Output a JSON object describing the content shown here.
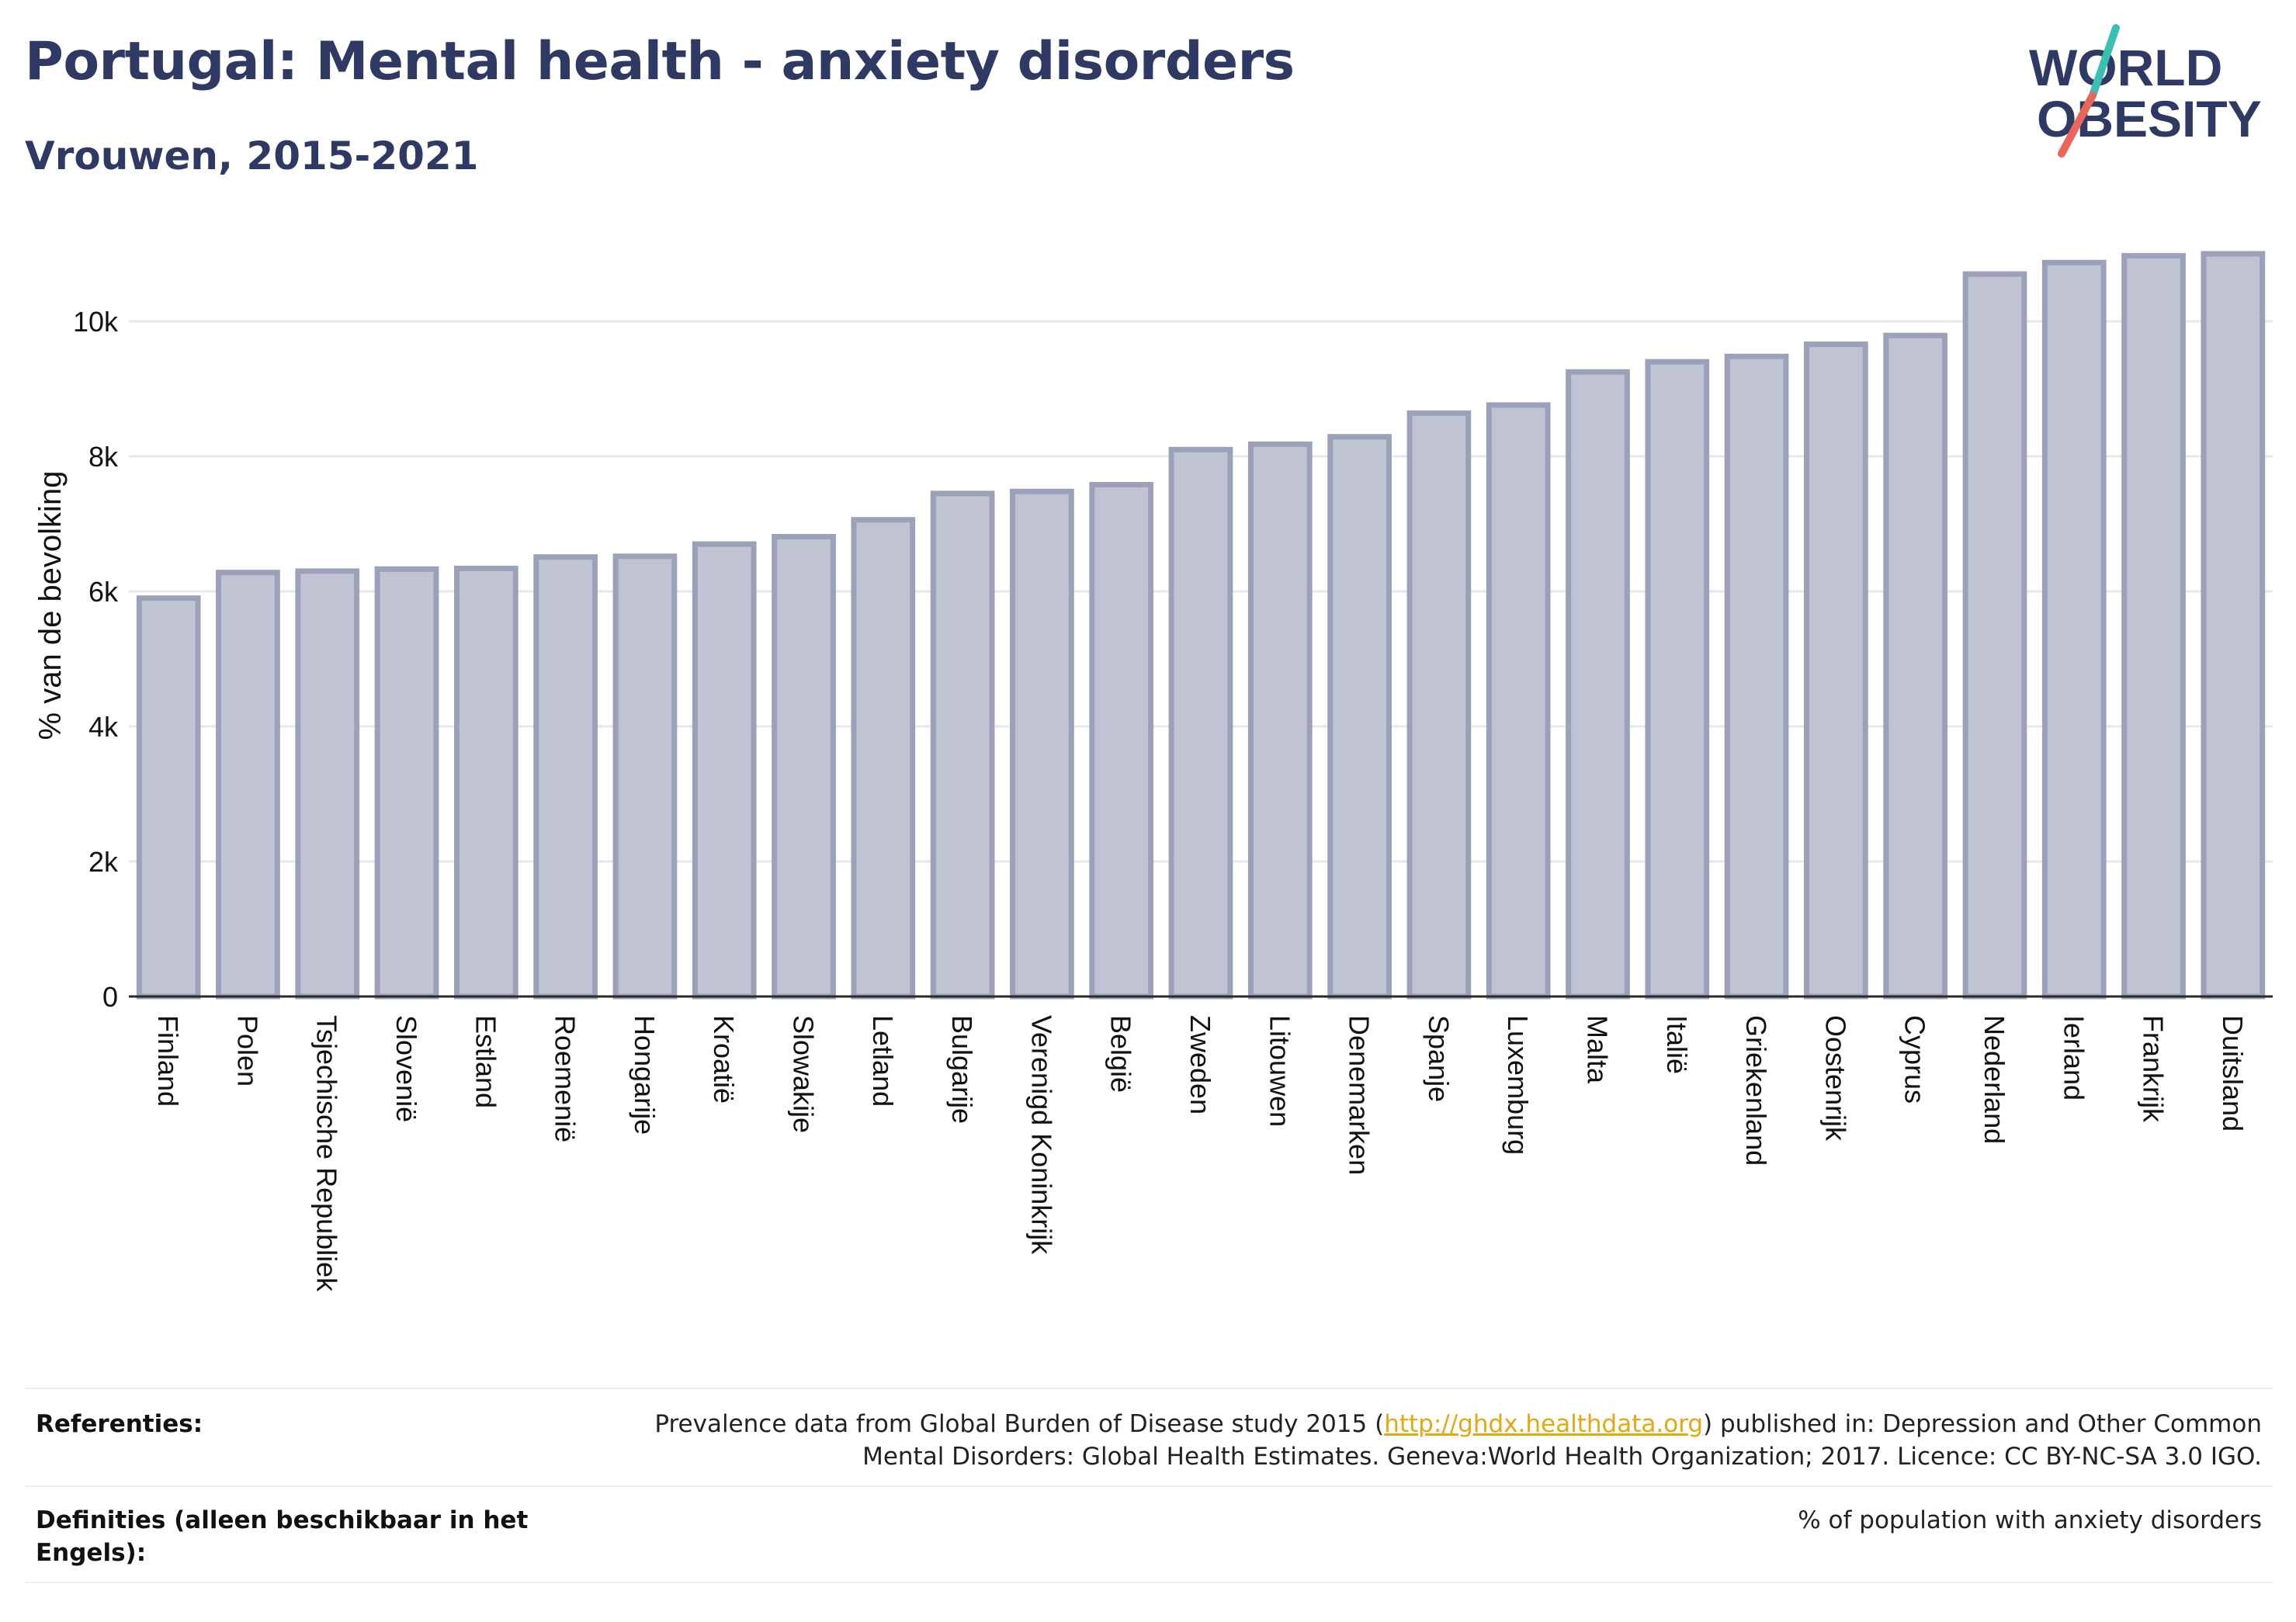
{
  "header": {
    "title": "Portugal: Mental health - anxiety disorders",
    "subtitle": "Vrouwen, 2015-2021"
  },
  "logo": {
    "line1": "WORLD",
    "line2": "OBESITY",
    "colors": {
      "text": "#2e3a63",
      "slash_top": "#3bbfb3",
      "slash_bottom": "#e8675a"
    }
  },
  "chart_data": {
    "type": "bar",
    "ylabel": "% van de bevolking",
    "ylim": [
      0,
      11400
    ],
    "yticks": [
      0,
      2000,
      4000,
      6000,
      8000,
      10000
    ],
    "ytick_labels": [
      "0",
      "2k",
      "4k",
      "6k",
      "8k",
      "10k"
    ],
    "grid": true,
    "bar_fill": "#c0c4d2",
    "bar_stroke": "#9aa1b9",
    "categories": [
      "Finland",
      "Polen",
      "Tsjechische Republiek",
      "Slovenië",
      "Estland",
      "Roemenië",
      "Hongarije",
      "Kroatië",
      "Slowakije",
      "Letland",
      "Bulgarije",
      "Verenigd Koninkrijk",
      "België",
      "Zweden",
      "Litouwen",
      "Denemarken",
      "Spanje",
      "Luxemburg",
      "Malta",
      "Italië",
      "Griekenland",
      "Oostenrijk",
      "Cyprus",
      "Nederland",
      "Ierland",
      "Frankrijk",
      "Duitsland"
    ],
    "values": [
      5900,
      6280,
      6300,
      6330,
      6340,
      6510,
      6520,
      6700,
      6810,
      7060,
      7450,
      7480,
      7580,
      8100,
      8180,
      8290,
      8640,
      8760,
      9250,
      9400,
      9480,
      9660,
      9790,
      10700,
      10870,
      10970,
      11000
    ]
  },
  "footer": {
    "references_label": "Referenties:",
    "references_text_before": "Prevalence data from Global Burden of Disease study 2015 (",
    "references_link": "http://ghdx.healthdata.org",
    "references_text_after": ") published in: Depression and Other Common",
    "references_text_line2": "Mental Disorders: Global Health Estimates. Geneva:World Health Organization; 2017. Licence: CC BY-NC-SA 3.0 IGO.",
    "definitions_label_line1": "Definities (alleen beschikbaar in het",
    "definitions_label_line2": "Engels):",
    "definitions_text": "% of population with anxiety disorders"
  }
}
